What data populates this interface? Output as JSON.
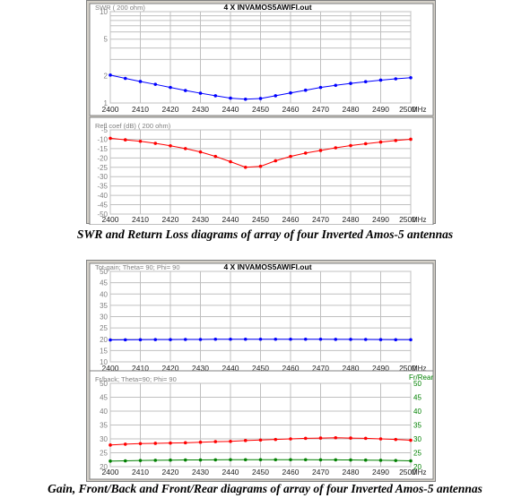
{
  "captions": {
    "top": "SWR and Return Loss diagrams of array of four Inverted Amos-5 antennas",
    "bottom": "Gain, Front/Back and Front/Rear diagrams of array of four Inverted Amos-5 antennas"
  },
  "colors": {
    "background": "#ffffff",
    "frame": "#d4d0c8",
    "grid": "#c0c0c0",
    "axis_text": "#7f7f7f",
    "swr_line": "#0000ff",
    "refl_line": "#ff0000",
    "gain_line": "#0000ff",
    "frback_line": "#ff0000",
    "frrear_line": "#008000",
    "frrear_axis_text": "#008000"
  },
  "chart_data": [
    {
      "type": "line",
      "panel": "top",
      "title": "4 X INVAMOS5AWIFI.out",
      "ylabel": "SWR ( 200 ohm)",
      "xlabel": "MHz",
      "y_scale": "log",
      "ylim": [
        1,
        10
      ],
      "y_ticks": [
        1,
        2,
        3,
        4,
        5,
        6,
        7,
        8,
        9,
        10
      ],
      "y_tick_labels": [
        "1",
        "2",
        "",
        "",
        "5",
        "",
        "",
        "",
        "",
        "10"
      ],
      "xlim": [
        2400,
        2500
      ],
      "x_ticks": [
        2400,
        2410,
        2420,
        2430,
        2440,
        2450,
        2460,
        2470,
        2480,
        2490,
        2500
      ],
      "x_tick_labels": [
        "2400",
        "2410",
        "2420",
        "2430",
        "2440",
        "2450",
        "2460",
        "2470",
        "2480",
        "2490",
        "2500"
      ],
      "grid": true,
      "series": [
        {
          "color": "#0000ff",
          "x": [
            2400,
            2405,
            2410,
            2415,
            2420,
            2425,
            2430,
            2435,
            2440,
            2445,
            2450,
            2455,
            2460,
            2465,
            2470,
            2475,
            2480,
            2485,
            2490,
            2495,
            2500
          ],
          "values": [
            2.02,
            1.86,
            1.72,
            1.6,
            1.48,
            1.37,
            1.28,
            1.2,
            1.13,
            1.1,
            1.12,
            1.2,
            1.29,
            1.38,
            1.48,
            1.56,
            1.64,
            1.71,
            1.78,
            1.84,
            1.89
          ]
        }
      ]
    },
    {
      "type": "line",
      "panel": "top",
      "title": "",
      "ylabel": "Refl coef (dB) ( 200 ohm)",
      "xlabel": "MHz",
      "ylim": [
        -50,
        -5
      ],
      "y_ticks": [
        -5,
        -10,
        -15,
        -20,
        -25,
        -30,
        -35,
        -40,
        -45,
        -50
      ],
      "y_tick_labels": [
        "-5",
        "-10",
        "-15",
        "-20",
        "-25",
        "-30",
        "-35",
        "-40",
        "-45",
        "-50"
      ],
      "xlim": [
        2400,
        2500
      ],
      "x_ticks": [
        2400,
        2410,
        2420,
        2430,
        2440,
        2450,
        2460,
        2470,
        2480,
        2490,
        2500
      ],
      "x_tick_labels": [
        "2400",
        "2410",
        "2420",
        "2430",
        "2440",
        "2450",
        "2460",
        "2470",
        "2480",
        "2490",
        "2500"
      ],
      "grid": true,
      "series": [
        {
          "color": "#ff0000",
          "x": [
            2400,
            2405,
            2410,
            2415,
            2420,
            2425,
            2430,
            2435,
            2440,
            2445,
            2450,
            2455,
            2460,
            2465,
            2470,
            2475,
            2480,
            2485,
            2490,
            2495,
            2500
          ],
          "values": [
            -9.5,
            -10.3,
            -11.1,
            -12.2,
            -13.5,
            -15.0,
            -16.8,
            -19.2,
            -22.0,
            -25.0,
            -24.5,
            -21.5,
            -19.2,
            -17.4,
            -16.0,
            -14.6,
            -13.4,
            -12.4,
            -11.5,
            -10.7,
            -10.0
          ]
        }
      ]
    },
    {
      "type": "line",
      "panel": "bottom",
      "title": "4 X INVAMOS5AWIFI.out",
      "ylabel": "Tot-gain; Theta= 90; Phi= 90",
      "xlabel": "MHz",
      "ylim": [
        10,
        50
      ],
      "y_ticks": [
        10,
        15,
        20,
        25,
        30,
        35,
        40,
        45,
        50
      ],
      "y_tick_labels": [
        "10",
        "15",
        "20",
        "25",
        "30",
        "35",
        "40",
        "45",
        "50"
      ],
      "xlim": [
        2400,
        2500
      ],
      "x_ticks": [
        2400,
        2410,
        2420,
        2430,
        2440,
        2450,
        2460,
        2470,
        2480,
        2490,
        2500
      ],
      "x_tick_labels": [
        "2400",
        "2410",
        "2420",
        "2430",
        "2440",
        "2450",
        "2460",
        "2470",
        "2480",
        "2490",
        "2500"
      ],
      "grid": true,
      "series": [
        {
          "color": "#0000ff",
          "x": [
            2400,
            2405,
            2410,
            2415,
            2420,
            2425,
            2430,
            2435,
            2440,
            2445,
            2450,
            2455,
            2460,
            2465,
            2470,
            2475,
            2480,
            2485,
            2490,
            2495,
            2500
          ],
          "values": [
            19.7,
            19.75,
            19.8,
            19.85,
            19.85,
            19.9,
            19.9,
            20.0,
            20.0,
            20.0,
            20.0,
            20.0,
            20.0,
            20.0,
            20.0,
            19.95,
            19.95,
            19.9,
            19.85,
            19.8,
            19.8
          ]
        }
      ]
    },
    {
      "type": "line",
      "panel": "bottom",
      "title": "",
      "ylabel": "Fr/back; Theta=90; Phi= 90",
      "ylabel_right": "Fr/Rear",
      "xlabel": "MHz",
      "ylim": [
        20,
        50
      ],
      "y_ticks": [
        20,
        25,
        30,
        35,
        40,
        45,
        50
      ],
      "y_tick_labels": [
        "20",
        "25",
        "30",
        "35",
        "40",
        "45",
        "50"
      ],
      "ylim_right": [
        20,
        50
      ],
      "y_tick_labels_right": [
        "20",
        "25",
        "30",
        "35",
        "40",
        "45",
        "50"
      ],
      "xlim": [
        2400,
        2500
      ],
      "x_ticks": [
        2400,
        2410,
        2420,
        2430,
        2440,
        2450,
        2460,
        2470,
        2480,
        2490,
        2500
      ],
      "x_tick_labels": [
        "2400",
        "2410",
        "2420",
        "2430",
        "2440",
        "2450",
        "2460",
        "2470",
        "2480",
        "2490",
        "2500"
      ],
      "grid": true,
      "series": [
        {
          "color": "#ff0000",
          "x": [
            2400,
            2405,
            2410,
            2415,
            2420,
            2425,
            2430,
            2435,
            2440,
            2445,
            2450,
            2455,
            2460,
            2465,
            2470,
            2475,
            2480,
            2485,
            2490,
            2495,
            2500
          ],
          "values": [
            27.8,
            28.1,
            28.3,
            28.4,
            28.5,
            28.6,
            28.8,
            29.0,
            29.1,
            29.4,
            29.6,
            29.8,
            30.0,
            30.2,
            30.3,
            30.4,
            30.3,
            30.2,
            30.0,
            29.8,
            29.5
          ]
        },
        {
          "color": "#008000",
          "axis": "right",
          "x": [
            2400,
            2405,
            2410,
            2415,
            2420,
            2425,
            2430,
            2435,
            2440,
            2445,
            2450,
            2455,
            2460,
            2465,
            2470,
            2475,
            2480,
            2485,
            2490,
            2495,
            2500
          ],
          "values": [
            22.0,
            22.1,
            22.2,
            22.3,
            22.35,
            22.4,
            22.4,
            22.45,
            22.5,
            22.5,
            22.5,
            22.5,
            22.5,
            22.5,
            22.45,
            22.45,
            22.4,
            22.35,
            22.3,
            22.2,
            22.1
          ]
        }
      ]
    }
  ]
}
